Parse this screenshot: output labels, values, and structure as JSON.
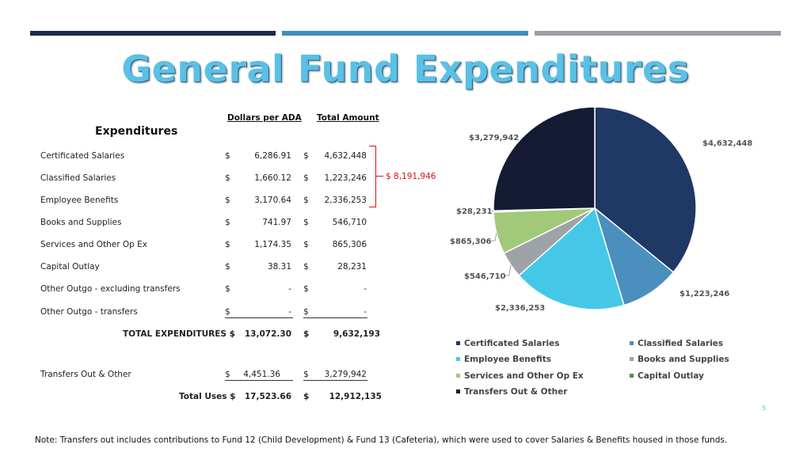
{
  "title": "General Fund Expenditures",
  "colors": {
    "accent_navy": "#1c2b4b",
    "accent_blue": "#3f8dbf",
    "accent_gray": "#9a9fa5",
    "title": "#5bc0e6",
    "bracket": "#dd1111"
  },
  "table": {
    "heading": "Expenditures",
    "col_per_ada": "Dollars per ADA",
    "col_total": "Total Amount",
    "currency": "$",
    "rows": [
      {
        "label": "Certificated Salaries",
        "per_ada": "6,286.91",
        "total": "4,632,448"
      },
      {
        "label": "Classified Salaries",
        "per_ada": "1,660.12",
        "total": "1,223,246"
      },
      {
        "label": "Employee Benefits",
        "per_ada": "3,170.64",
        "total": "2,336,253"
      },
      {
        "label": "Books and Supplies",
        "per_ada": "741.97",
        "total": "546,710"
      },
      {
        "label": "Services and Other Op Ex",
        "per_ada": "1,174.35",
        "total": "865,306"
      },
      {
        "label": "Capital Outlay",
        "per_ada": "38.31",
        "total": "28,231"
      },
      {
        "label": "Other Outgo - excluding transfers",
        "per_ada": "-",
        "total": "-"
      },
      {
        "label": "Other Outgo - transfers",
        "per_ada": "-",
        "total": "-"
      }
    ],
    "total_row": {
      "label": "TOTAL EXPENDITURES $",
      "per_ada": "13,072.30",
      "total": "9,632,193"
    },
    "transfers_row": {
      "label": "Transfers Out & Other",
      "per_ada": "4,451.36",
      "total": "3,279,942"
    },
    "uses_row": {
      "label": "Total Uses $",
      "per_ada": "17,523.66",
      "total": "12,912,135"
    },
    "bracket_total": "$ 8,191,946"
  },
  "chart_data": {
    "type": "pie",
    "slices": [
      {
        "name": "Certificated Salaries",
        "value": 4632448,
        "label": "$4,632,448",
        "color": "#1f3864"
      },
      {
        "name": "Classified Salaries",
        "value": 1223246,
        "label": "$1,223,246",
        "color": "#4a8fbd"
      },
      {
        "name": "Employee Benefits",
        "value": 2336253,
        "label": "$2,336,253",
        "color": "#45c8e8"
      },
      {
        "name": "Books and Supplies",
        "value": 546710,
        "label": "$546,710",
        "color": "#9ea3a8"
      },
      {
        "name": "Services and Other Op Ex",
        "value": 865306,
        "label": "$865,306",
        "color": "#a2c97a"
      },
      {
        "name": "Capital Outlay",
        "value": 28231,
        "label": "$28,231",
        "color": "#4e8f4e"
      },
      {
        "name": "Transfers Out & Other",
        "value": 3279942,
        "label": "$3,279,942",
        "color": "#141b33"
      }
    ],
    "legend": [
      {
        "name": "Certificated Salaries",
        "color": "#1f3864"
      },
      {
        "name": "Classified Salaries",
        "color": "#4a8fbd"
      },
      {
        "name": "Employee Benefits",
        "color": "#45c8e8"
      },
      {
        "name": "Books and Supplies",
        "color": "#9ea3a8"
      },
      {
        "name": "Services and Other Op Ex",
        "color": "#a2c97a"
      },
      {
        "name": "Capital Outlay",
        "color": "#4e8f4e"
      },
      {
        "name": "Transfers Out & Other",
        "color": "#141b33"
      }
    ],
    "legend_position": "bottom"
  },
  "page_number": "5",
  "note": "Note: Transfers out includes contributions to Fund 12 (Child Development) & Fund 13 (Cafeteria), which were used to cover Salaries & Benefits housed in those funds."
}
